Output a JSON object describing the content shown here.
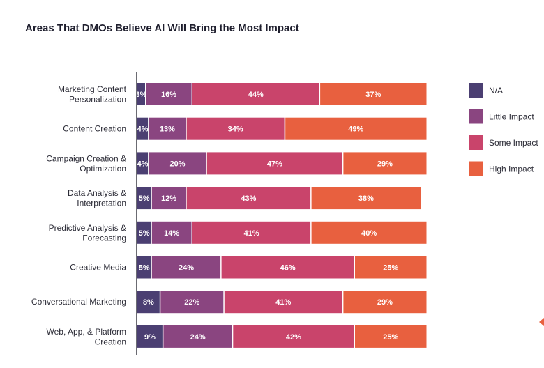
{
  "chart_data": {
    "type": "bar",
    "orientation": "horizontal",
    "stacked": true,
    "title": "Areas That DMOs Believe AI Will Bring the Most Impact",
    "categories": [
      [
        "Marketing Content",
        "Personalization"
      ],
      [
        "Content Creation"
      ],
      [
        "Campaign Creation &",
        "Optimization"
      ],
      [
        "Data Analysis &",
        "Interpretation"
      ],
      [
        "Predictive Analysis &",
        "Forecasting"
      ],
      [
        "Creative Media"
      ],
      [
        "Conversational Marketing"
      ],
      [
        "Web, App, & Platform",
        "Creation"
      ]
    ],
    "series": [
      {
        "name": "N/A",
        "color": "#4b3f72",
        "values": [
          3,
          4,
          4,
          5,
          5,
          5,
          8,
          9
        ]
      },
      {
        "name": "Little Impact",
        "color": "#8a4580",
        "values": [
          16,
          13,
          20,
          12,
          14,
          24,
          22,
          24
        ]
      },
      {
        "name": "Some Impact",
        "color": "#c9446b",
        "values": [
          44,
          34,
          47,
          43,
          41,
          46,
          41,
          42
        ]
      },
      {
        "name": "High Impact",
        "color": "#e8603f",
        "values": [
          37,
          49,
          29,
          38,
          40,
          25,
          29,
          25
        ]
      }
    ],
    "value_suffix": "%",
    "xlim": [
      0,
      100
    ],
    "legend_position": "right",
    "grid": false
  }
}
